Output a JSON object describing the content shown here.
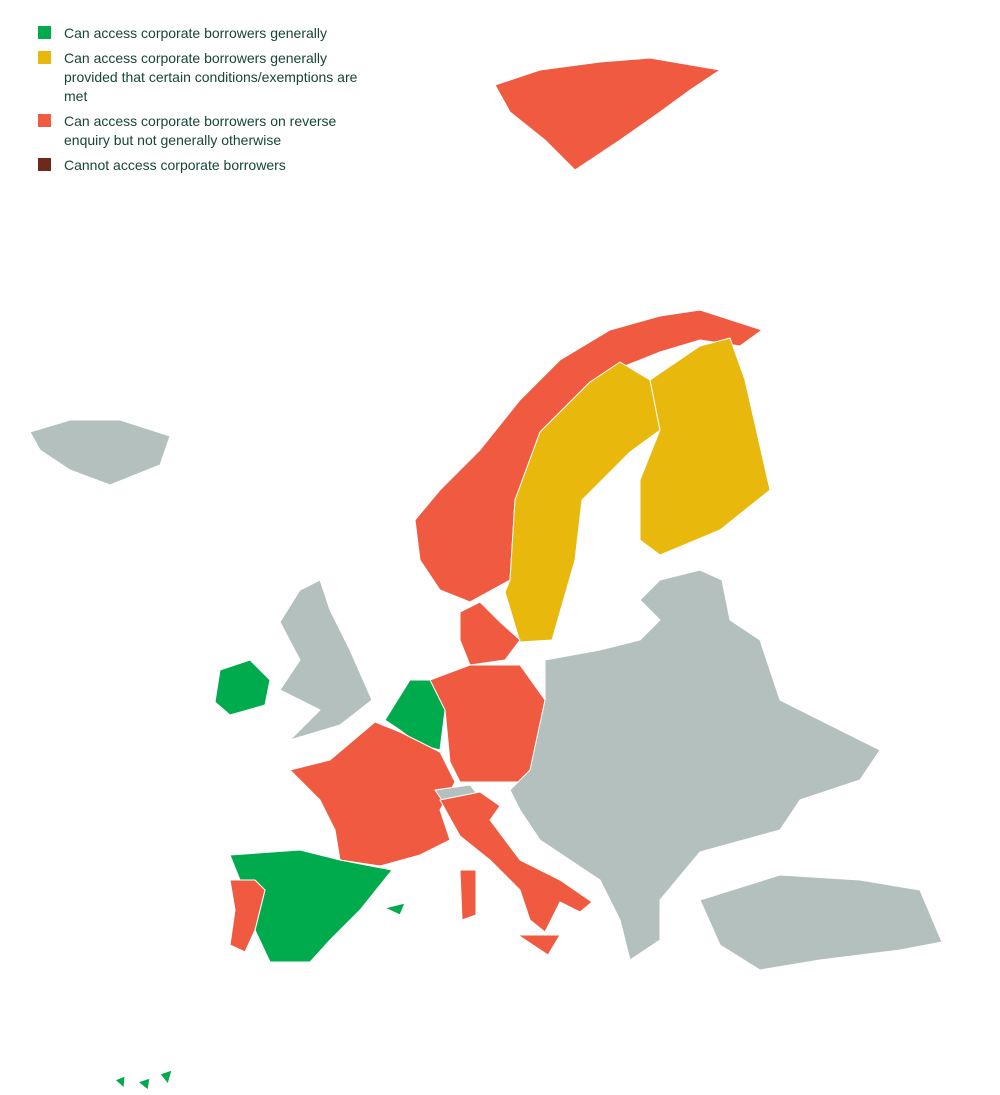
{
  "legend": {
    "items": [
      {
        "label": "Can access corporate borrowers generally",
        "color": "#00ab4e"
      },
      {
        "label": "Can access corporate borrowers generally provided that certain conditions/exemptions are met",
        "color": "#e8b80c"
      },
      {
        "label": "Can access corporate borrowers on reverse enquiry but not generally otherwise",
        "color": "#ef5a40"
      },
      {
        "label": "Cannot access corporate borrowers",
        "color": "#6b2a1a"
      }
    ]
  },
  "map": {
    "no_data_color": "#b4c0bd"
  }
}
